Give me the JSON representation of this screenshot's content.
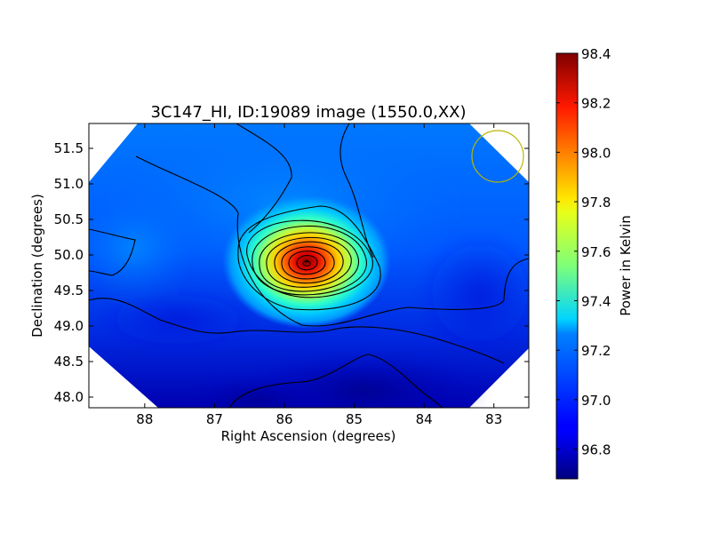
{
  "chart_data": {
    "type": "heatmap",
    "title": "3C147_HI, ID:19089 image (1550.0,XX)",
    "xlabel": "Right Ascension (degrees)",
    "ylabel": "Declination (degrees)",
    "colorbar_label": "Power in Kelvin",
    "xlim": [
      88.8,
      82.5
    ],
    "ylim": [
      47.85,
      51.85
    ],
    "x_ticks": [
      "88",
      "87",
      "86",
      "85",
      "84",
      "83"
    ],
    "y_ticks": [
      "48.0",
      "48.5",
      "49.0",
      "49.5",
      "50.0",
      "50.5",
      "51.0",
      "51.5"
    ],
    "colorbar_range": [
      96.68,
      98.4
    ],
    "colorbar_ticks": [
      "96.8",
      "97.0",
      "97.2",
      "97.4",
      "97.6",
      "97.8",
      "98.0",
      "98.2",
      "98.4"
    ],
    "colormap": "jet",
    "peak": {
      "ra": 85.68,
      "dec": 49.88,
      "value": 98.4
    },
    "beam_circle": {
      "ra": 82.98,
      "dec": 51.4,
      "color": "#b8b800"
    },
    "contour_color": "#000000",
    "grid": false
  }
}
